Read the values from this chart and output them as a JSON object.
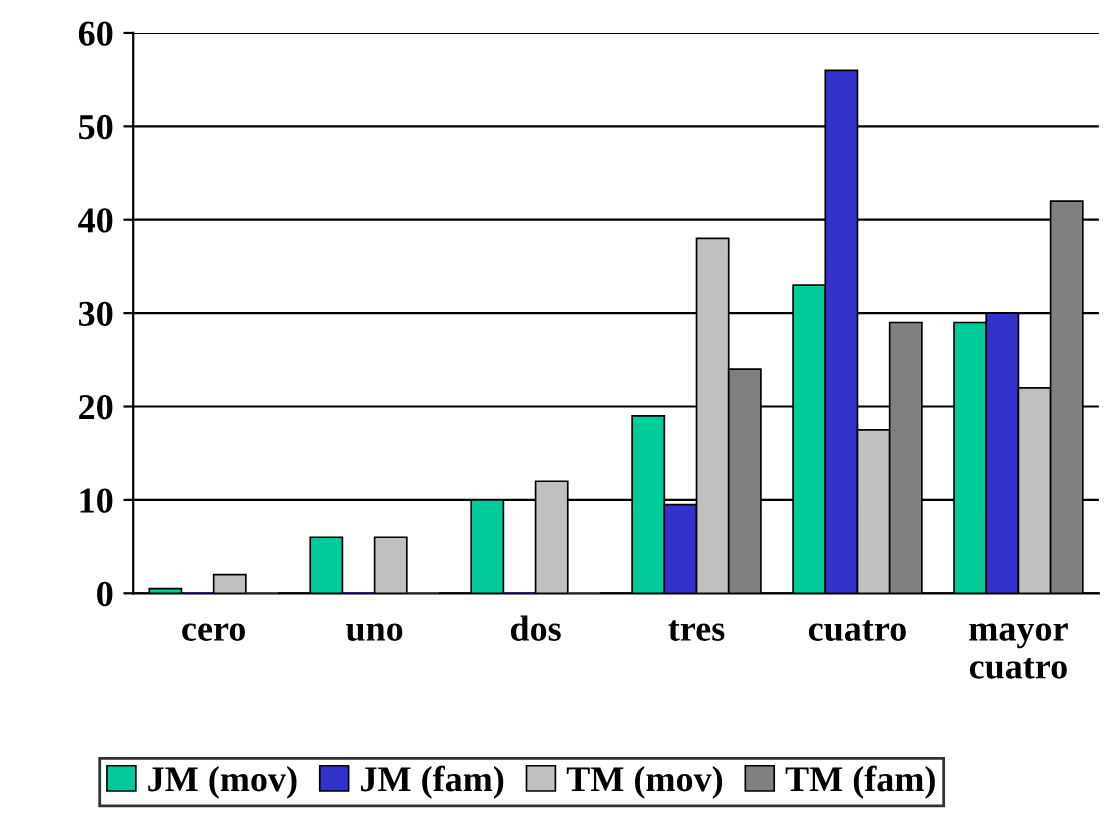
{
  "chart_data": {
    "type": "bar",
    "categories": [
      "cero",
      "uno",
      "dos",
      "tres",
      "cuatro",
      "mayor\ncuatro"
    ],
    "series": [
      {
        "name": "JM (mov)",
        "color": "#00cc99",
        "values": [
          0.5,
          6,
          10,
          19,
          33,
          29
        ]
      },
      {
        "name": "JM (fam)",
        "color": "#3333cc",
        "values": [
          0,
          0,
          0,
          9.5,
          56,
          30
        ]
      },
      {
        "name": "TM (mov)",
        "color": "#c0c0c0",
        "values": [
          2,
          6,
          12,
          38,
          17.5,
          22
        ]
      },
      {
        "name": "TM (fam)",
        "color": "#808080",
        "values": [
          0,
          0,
          0,
          24,
          29,
          42
        ]
      }
    ],
    "ylim": [
      0,
      60
    ],
    "yticks": [
      0,
      10,
      20,
      30,
      40,
      50,
      60
    ],
    "grid": "y",
    "legend": "bottom"
  }
}
